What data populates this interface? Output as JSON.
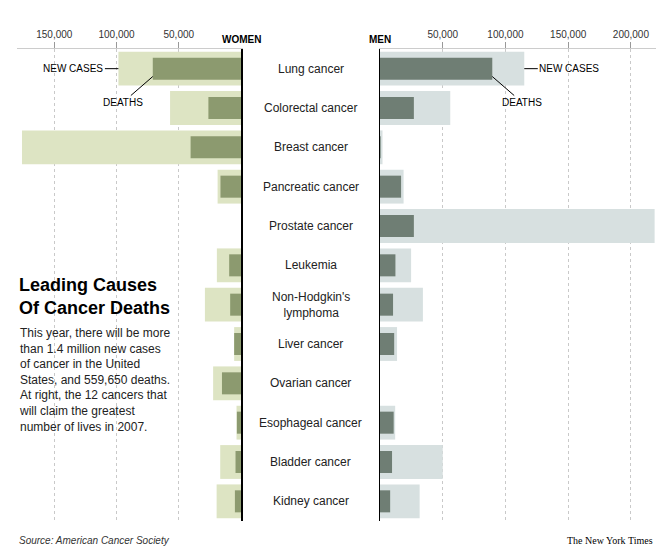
{
  "headline": [
    "Leading Causes",
    "Of Cancer Deaths"
  ],
  "subtitle": [
    "This year, there will be more",
    "than 1.4 million new cases",
    "of cancer in the United",
    "States, and 559,650 deaths.",
    "At right, the 12 cancers that",
    "will claim the greatest",
    "number of lives in 2007."
  ],
  "source": "Source: American Cancer Society",
  "credit": "The New York Times",
  "chart_data": [
    {
      "type": "bar",
      "orientation": "horizontal",
      "title": "WOMEN",
      "categories": [
        "Lung cancer",
        "Colorectal cancer",
        "Breast cancer",
        "Pancreatic cancer",
        "Prostate cancer",
        "Leukemia",
        "Non-Hodgkin's lymphoma",
        "Liver cancer",
        "Ovarian cancer",
        "Esophageal cancer",
        "Bladder cancer",
        "Kidney cancer"
      ],
      "series": [
        {
          "name": "NEW CASES",
          "color": "#dde4c3",
          "values": [
            98500,
            57000,
            176000,
            18800,
            null,
            19400,
            29000,
            5500,
            22400,
            3600,
            16700,
            19600
          ]
        },
        {
          "name": "DEATHS",
          "color": "#8c9a6f",
          "values": [
            70900,
            26200,
            40500,
            16500,
            null,
            9500,
            8700,
            5500,
            15300,
            3300,
            4400,
            4900
          ]
        }
      ],
      "xlim": [
        0,
        180000
      ],
      "xticks": [
        {
          "value": 50000,
          "label": "50,000"
        },
        {
          "value": 100000,
          "label": "100,000"
        },
        {
          "value": 150000,
          "label": "150,000"
        }
      ],
      "grid": true,
      "tick_labels": "x"
    },
    {
      "type": "bar",
      "orientation": "horizontal",
      "title": "MEN",
      "categories": [
        "Lung cancer",
        "Colorectal cancer",
        "Breast cancer",
        "Pancreatic cancer",
        "Prostate cancer",
        "Leukemia",
        "Non-Hodgkin's lymphoma",
        "Liver cancer",
        "Ovarian cancer",
        "Esophageal cancer",
        "Bladder cancer",
        "Kidney cancer"
      ],
      "series": [
        {
          "name": "NEW CASES",
          "color": "#d7e0e0",
          "values": [
            115000,
            56000,
            2000,
            18800,
            218900,
            24800,
            34200,
            13600,
            null,
            12100,
            50000,
            31600
          ]
        },
        {
          "name": "DEATHS",
          "color": "#6f7e74",
          "values": [
            89500,
            27000,
            500,
            16800,
            27000,
            12300,
            10400,
            11300,
            null,
            10900,
            9600,
            8100
          ]
        }
      ],
      "xlim": [
        0,
        220000
      ],
      "xticks": [
        {
          "value": 50000,
          "label": "50,000"
        },
        {
          "value": 100000,
          "label": "100,000"
        },
        {
          "value": 150000,
          "label": "150,000"
        },
        {
          "value": 200000,
          "label": "200,000"
        }
      ],
      "grid": true,
      "tick_labels": "x"
    }
  ]
}
